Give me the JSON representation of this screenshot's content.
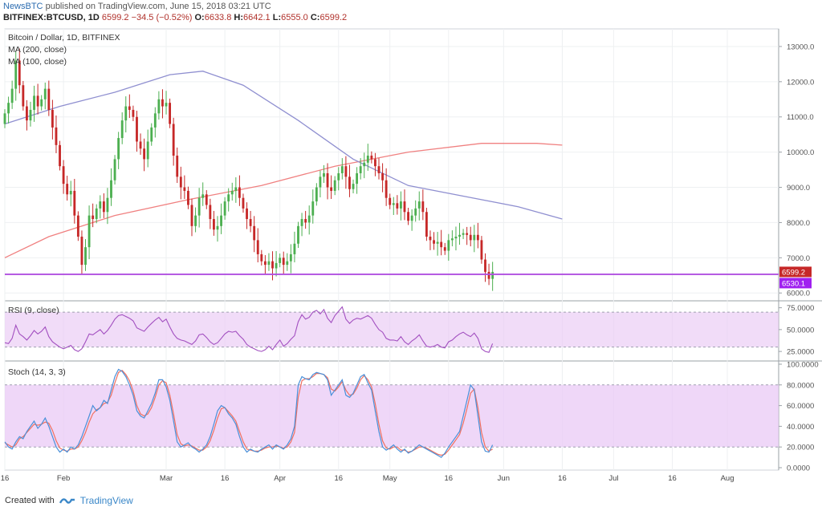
{
  "header": {
    "publisher": "NewsBTC",
    "published_text": "published on TradingView.com, June 15, 2018 03:21 UTC",
    "ticker_line": {
      "symbol": "BITFINEX:BTCUSD, 1D",
      "last": "6599.2",
      "change": "−34.5 (−0.52%)",
      "o_label": "O:",
      "o": "6633.8",
      "h_label": "H:",
      "h": "6642.1",
      "l_label": "L:",
      "l": "6555.0",
      "c_label": "C:",
      "c": "6599.2"
    }
  },
  "footer": {
    "created_with": "Created with",
    "brand": "TradingView"
  },
  "colors": {
    "up": "#4caf50",
    "down": "#c62828",
    "ma200": "#f08080",
    "ma100": "#8f8fd0",
    "support": "#b04fe0",
    "rsi": "#a24fc0",
    "stoch_k": "#4a90d9",
    "stoch_d": "#f07060",
    "band_fill": "#e9c9f5"
  },
  "chart_data": [
    {
      "type": "candlestick",
      "title": "Bitcoin / Dollar, 1D, BITFINEX",
      "legend": [
        "MA (200, close)",
        "MA (100, close)"
      ],
      "ylim": [
        5800,
        13500
      ],
      "yticks": [
        6000,
        7000,
        8000,
        9000,
        10000,
        11000,
        12000,
        13000
      ],
      "ytick_labels": [
        "6000.0",
        "7000.0",
        "8000.0",
        "9000.0",
        "10000.0",
        "11000.0",
        "12000.0",
        "13000.0"
      ],
      "x_labels": [
        "16",
        "Feb",
        "Mar",
        "16",
        "Apr",
        "16",
        "May",
        "16",
        "Jun",
        "16",
        "Jul",
        "16",
        "Aug"
      ],
      "x_label_days": [
        0,
        16,
        44,
        60,
        75,
        91,
        105,
        121,
        136,
        152,
        166,
        182,
        197
      ],
      "price_badges": [
        {
          "label": "6599.2",
          "value": 6599.2,
          "color": "#c62828"
        },
        {
          "label": "6530.1",
          "value": 6530.1,
          "color": "#a020f0"
        }
      ],
      "support_level": 6530.1,
      "candles_close": [
        11100,
        11400,
        11800,
        12600,
        11900,
        11300,
        10900,
        11200,
        11600,
        11300,
        11500,
        11800,
        11200,
        10700,
        10200,
        9600,
        9100,
        8800,
        8900,
        8200,
        7600,
        6800,
        7300,
        8200,
        8100,
        8400,
        8600,
        8300,
        8700,
        9200,
        9800,
        10400,
        10900,
        11300,
        11200,
        11000,
        10300,
        10100,
        9800,
        10300,
        10700,
        11100,
        11500,
        11300,
        11400,
        10800,
        9900,
        9300,
        9000,
        8900,
        8500,
        7900,
        8200,
        8700,
        8800,
        8500,
        8100,
        7800,
        7900,
        8200,
        8600,
        8800,
        8900,
        9000,
        8700,
        8400,
        8100,
        7900,
        7500,
        7100,
        6900,
        6800,
        6900,
        6700,
        6850,
        7000,
        6800,
        6900,
        7100,
        7400,
        7900,
        8100,
        8000,
        8200,
        8600,
        9000,
        9300,
        9400,
        9000,
        8900,
        9200,
        9400,
        9600,
        9300,
        8950,
        9100,
        9400,
        9600,
        9700,
        9900,
        9800,
        9600,
        9400,
        9200,
        8700,
        8500,
        8550,
        8400,
        8600,
        8300,
        8050,
        8200,
        8400,
        8600,
        8300,
        7600,
        7500,
        7400,
        7450,
        7300,
        7200,
        7500,
        7550,
        7600,
        7650,
        7700,
        7650,
        7500,
        7650,
        7500,
        6950,
        6600,
        6400,
        6599.2
      ],
      "ma200": [
        {
          "day": 0,
          "value": 7000
        },
        {
          "day": 12,
          "value": 7600
        },
        {
          "day": 30,
          "value": 8200
        },
        {
          "day": 50,
          "value": 8650
        },
        {
          "day": 70,
          "value": 9050
        },
        {
          "day": 90,
          "value": 9600
        },
        {
          "day": 110,
          "value": 10000
        },
        {
          "day": 130,
          "value": 10250
        },
        {
          "day": 145,
          "value": 10250
        },
        {
          "day": 152,
          "value": 10200
        }
      ],
      "ma100": [
        {
          "day": 0,
          "value": 10800
        },
        {
          "day": 15,
          "value": 11300
        },
        {
          "day": 30,
          "value": 11700
        },
        {
          "day": 45,
          "value": 12200
        },
        {
          "day": 54,
          "value": 12300
        },
        {
          "day": 65,
          "value": 11900
        },
        {
          "day": 80,
          "value": 10900
        },
        {
          "day": 95,
          "value": 9800
        },
        {
          "day": 110,
          "value": 9050
        },
        {
          "day": 125,
          "value": 8750
        },
        {
          "day": 140,
          "value": 8450
        },
        {
          "day": 152,
          "value": 8100
        }
      ]
    },
    {
      "type": "line",
      "title": "RSI (9, close)",
      "ylim": [
        15,
        82
      ],
      "band": [
        30,
        70
      ],
      "yticks": [
        25,
        50,
        75
      ],
      "ytick_labels": [
        "25.0000",
        "50.0000",
        "75.0000"
      ],
      "series": [
        {
          "name": "RSI",
          "values": [
            35,
            34,
            40,
            55,
            45,
            42,
            38,
            43,
            49,
            45,
            48,
            53,
            42,
            36,
            33,
            30,
            28,
            30,
            32,
            27,
            25,
            28,
            36,
            45,
            44,
            47,
            50,
            45,
            49,
            55,
            62,
            66,
            67,
            65,
            63,
            60,
            52,
            50,
            48,
            53,
            57,
            61,
            64,
            59,
            62,
            53,
            45,
            40,
            38,
            37,
            35,
            33,
            37,
            44,
            45,
            41,
            36,
            33,
            35,
            40,
            45,
            48,
            47,
            48,
            43,
            39,
            33,
            30,
            28,
            26,
            25,
            27,
            31,
            27,
            33,
            38,
            31,
            34,
            39,
            43,
            59,
            67,
            62,
            64,
            70,
            72,
            68,
            73,
            63,
            58,
            66,
            71,
            76,
            62,
            57,
            61,
            63,
            62,
            64,
            66,
            63,
            56,
            50,
            47,
            40,
            38,
            38,
            37,
            42,
            36,
            33,
            37,
            40,
            44,
            37,
            31,
            30,
            31,
            33,
            30,
            29,
            36,
            38,
            42,
            45,
            47,
            44,
            42,
            46,
            40,
            28,
            25,
            24,
            34
          ]
        }
      ]
    },
    {
      "type": "line",
      "title": "Stoch (14, 3, 3)",
      "ylim": [
        0,
        100
      ],
      "band": [
        20,
        80
      ],
      "yticks": [
        0,
        20,
        40,
        60,
        80,
        100
      ],
      "ytick_labels": [
        "0.0000",
        "20.0000",
        "40.0000",
        "60.0000",
        "80.0000",
        "100.0000"
      ],
      "series": [
        {
          "name": "%K",
          "values": [
            25,
            20,
            18,
            25,
            30,
            28,
            35,
            40,
            45,
            38,
            42,
            48,
            40,
            30,
            20,
            15,
            18,
            15,
            20,
            18,
            22,
            30,
            40,
            50,
            60,
            55,
            58,
            65,
            62,
            75,
            88,
            95,
            93,
            88,
            80,
            70,
            55,
            50,
            48,
            55,
            62,
            72,
            85,
            85,
            78,
            65,
            45,
            25,
            20,
            22,
            24,
            20,
            18,
            15,
            18,
            22,
            30,
            42,
            55,
            60,
            58,
            52,
            48,
            42,
            30,
            20,
            15,
            18,
            16,
            15,
            18,
            20,
            22,
            18,
            22,
            20,
            18,
            22,
            28,
            40,
            80,
            88,
            86,
            85,
            90,
            92,
            91,
            90,
            85,
            70,
            75,
            80,
            85,
            70,
            68,
            72,
            80,
            88,
            90,
            82,
            75,
            55,
            35,
            20,
            17,
            19,
            22,
            18,
            15,
            18,
            14,
            16,
            19,
            22,
            20,
            18,
            16,
            14,
            12,
            10,
            14,
            20,
            25,
            30,
            35,
            50,
            65,
            80,
            75,
            50,
            25,
            16,
            15,
            22
          ]
        },
        {
          "name": "%D",
          "values": [
            24,
            22,
            20,
            22,
            28,
            30,
            34,
            38,
            42,
            41,
            42,
            44,
            43,
            36,
            26,
            19,
            17,
            16,
            18,
            18,
            20,
            26,
            34,
            44,
            52,
            56,
            58,
            62,
            63,
            70,
            82,
            92,
            94,
            90,
            84,
            74,
            60,
            52,
            50,
            52,
            58,
            68,
            80,
            84,
            82,
            70,
            52,
            32,
            23,
            21,
            22,
            21,
            19,
            17,
            17,
            20,
            26,
            36,
            48,
            57,
            58,
            54,
            50,
            45,
            35,
            25,
            18,
            17,
            16,
            16,
            17,
            19,
            20,
            20,
            21,
            20,
            19,
            20,
            25,
            34,
            68,
            84,
            86,
            86,
            88,
            91,
            91,
            90,
            87,
            76,
            74,
            78,
            83,
            75,
            70,
            71,
            77,
            85,
            89,
            85,
            78,
            62,
            42,
            26,
            19,
            18,
            20,
            20,
            17,
            17,
            15,
            16,
            18,
            20,
            20,
            19,
            17,
            15,
            13,
            12,
            13,
            17,
            22,
            27,
            32,
            43,
            57,
            72,
            76,
            58,
            34,
            20,
            16,
            18
          ]
        }
      ]
    }
  ]
}
